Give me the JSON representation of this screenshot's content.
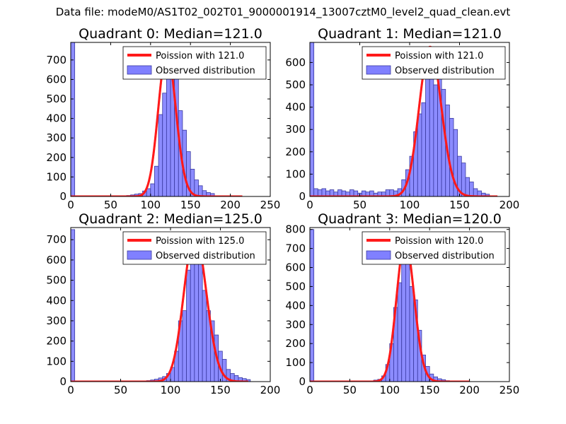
{
  "figure": {
    "suptitle": "Data file: modeM0/AS1T02_002T01_9000001914_13007cztM0_level2_quad_clean.evt"
  },
  "colors": {
    "bar_fill": "#8080ff",
    "bar_edge": "#3a3aa0",
    "line": "#ff1a1a",
    "background": "#ffffff"
  },
  "chart_data": [
    {
      "type": "bar",
      "title": "Quadrant 0: Median=121.0",
      "xlim": [
        0,
        250
      ],
      "ylim": [
        0,
        790
      ],
      "xticks": [
        0,
        50,
        100,
        150,
        200,
        250
      ],
      "yticks": [
        0,
        100,
        200,
        300,
        400,
        500,
        600,
        700
      ],
      "bin_width": 5,
      "bins": [
        [
          0,
          790
        ],
        [
          70,
          5
        ],
        [
          75,
          8
        ],
        [
          80,
          12
        ],
        [
          85,
          15
        ],
        [
          90,
          28
        ],
        [
          95,
          40
        ],
        [
          100,
          65
        ],
        [
          105,
          155
        ],
        [
          110,
          420
        ],
        [
          115,
          530
        ],
        [
          120,
          720
        ],
        [
          125,
          740
        ],
        [
          130,
          640
        ],
        [
          135,
          440
        ],
        [
          140,
          340
        ],
        [
          145,
          230
        ],
        [
          150,
          140
        ],
        [
          155,
          85
        ],
        [
          160,
          55
        ],
        [
          165,
          30
        ],
        [
          170,
          20
        ],
        [
          175,
          15
        ]
      ],
      "poisson_mean": 121,
      "poisson_range": [
        0,
        215
      ],
      "legend": [
        "Poission with 121.0",
        "Observed distribution"
      ]
    },
    {
      "type": "bar",
      "title": "Quadrant 1: Median=121.0",
      "xlim": [
        0,
        200
      ],
      "ylim": [
        0,
        690
      ],
      "xticks": [
        0,
        50,
        100,
        150,
        200
      ],
      "yticks": [
        0,
        100,
        200,
        300,
        400,
        500,
        600
      ],
      "bin_width": 4,
      "bins": [
        [
          0,
          690
        ],
        [
          4,
          35
        ],
        [
          8,
          30
        ],
        [
          12,
          35
        ],
        [
          16,
          25
        ],
        [
          20,
          30
        ],
        [
          24,
          20
        ],
        [
          28,
          30
        ],
        [
          32,
          25
        ],
        [
          36,
          20
        ],
        [
          40,
          30
        ],
        [
          44,
          25
        ],
        [
          48,
          15
        ],
        [
          52,
          25
        ],
        [
          56,
          20
        ],
        [
          60,
          25
        ],
        [
          64,
          15
        ],
        [
          68,
          20
        ],
        [
          72,
          20
        ],
        [
          76,
          30
        ],
        [
          80,
          30
        ],
        [
          84,
          25
        ],
        [
          88,
          35
        ],
        [
          92,
          75
        ],
        [
          96,
          120
        ],
        [
          100,
          180
        ],
        [
          104,
          290
        ],
        [
          108,
          370
        ],
        [
          112,
          420
        ],
        [
          116,
          560
        ],
        [
          120,
          670
        ],
        [
          124,
          500
        ],
        [
          128,
          650
        ],
        [
          132,
          480
        ],
        [
          136,
          410
        ],
        [
          140,
          350
        ],
        [
          144,
          300
        ],
        [
          148,
          180
        ],
        [
          152,
          150
        ],
        [
          156,
          85
        ],
        [
          160,
          65
        ],
        [
          164,
          35
        ],
        [
          168,
          25
        ],
        [
          172,
          15
        ],
        [
          176,
          10
        ]
      ],
      "poisson_mean": 121,
      "poisson_range": [
        0,
        188
      ],
      "legend": [
        "Poission with 121.0",
        "Observed distribution"
      ]
    },
    {
      "type": "bar",
      "title": "Quadrant 2: Median=125.0",
      "xlim": [
        0,
        200
      ],
      "ylim": [
        0,
        760
      ],
      "xticks": [
        0,
        50,
        100,
        150,
        200
      ],
      "yticks": [
        0,
        100,
        200,
        300,
        400,
        500,
        600,
        700
      ],
      "bin_width": 4,
      "bins": [
        [
          0,
          750
        ],
        [
          76,
          5
        ],
        [
          80,
          8
        ],
        [
          84,
          12
        ],
        [
          88,
          18
        ],
        [
          92,
          25
        ],
        [
          96,
          40
        ],
        [
          100,
          70
        ],
        [
          104,
          150
        ],
        [
          108,
          300
        ],
        [
          112,
          350
        ],
        [
          116,
          550
        ],
        [
          120,
          730
        ],
        [
          124,
          720
        ],
        [
          128,
          580
        ],
        [
          132,
          450
        ],
        [
          136,
          350
        ],
        [
          140,
          300
        ],
        [
          144,
          230
        ],
        [
          148,
          150
        ],
        [
          152,
          110
        ],
        [
          156,
          60
        ],
        [
          160,
          40
        ],
        [
          164,
          30
        ],
        [
          168,
          20
        ],
        [
          172,
          15
        ],
        [
          176,
          10
        ]
      ],
      "poisson_mean": 125,
      "poisson_range": [
        0,
        178
      ],
      "legend": [
        "Poission with 125.0",
        "Observed distribution"
      ]
    },
    {
      "type": "bar",
      "title": "Quadrant 3: Median=120.0",
      "xlim": [
        0,
        250
      ],
      "ylim": [
        0,
        810
      ],
      "xticks": [
        0,
        50,
        100,
        150,
        200,
        250
      ],
      "yticks": [
        0,
        100,
        200,
        300,
        400,
        500,
        600,
        700,
        800
      ],
      "bin_width": 5,
      "bins": [
        [
          0,
          800
        ],
        [
          80,
          8
        ],
        [
          85,
          12
        ],
        [
          90,
          30
        ],
        [
          95,
          90
        ],
        [
          100,
          200
        ],
        [
          105,
          390
        ],
        [
          110,
          520
        ],
        [
          115,
          720
        ],
        [
          120,
          740
        ],
        [
          125,
          500
        ],
        [
          130,
          430
        ],
        [
          135,
          270
        ],
        [
          140,
          140
        ],
        [
          145,
          80
        ],
        [
          150,
          40
        ],
        [
          155,
          25
        ],
        [
          160,
          15
        ],
        [
          165,
          10
        ],
        [
          170,
          5
        ]
      ],
      "poisson_mean": 120,
      "poisson_range": [
        0,
        200
      ],
      "legend": [
        "Poission with 120.0",
        "Observed distribution"
      ]
    }
  ]
}
